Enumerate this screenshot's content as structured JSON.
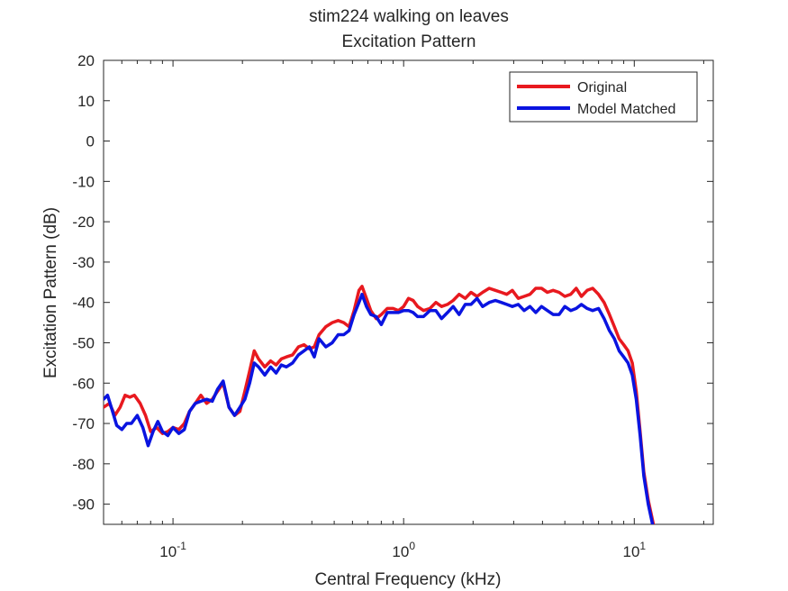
{
  "chart_data": {
    "type": "line",
    "title": "stim224 walking on leaves",
    "subtitle": "Excitation Pattern",
    "xlabel": "Central Frequency (kHz)",
    "ylabel": "Excitation Pattern (dB)",
    "xscale": "log",
    "xlim": [
      0.05,
      22
    ],
    "ylim": [
      -95,
      20
    ],
    "x_ticks": [
      {
        "value": 0.1,
        "base": "10",
        "exp": "-1"
      },
      {
        "value": 1,
        "base": "10",
        "exp": "0"
      },
      {
        "value": 10,
        "base": "10",
        "exp": "1"
      }
    ],
    "y_ticks": [
      20,
      10,
      0,
      -10,
      -20,
      -30,
      -40,
      -50,
      -60,
      -70,
      -80,
      -90
    ],
    "grid": false,
    "legend_position": "top-right",
    "series": [
      {
        "name": "Original",
        "color": "#e8191f",
        "points": [
          [
            0.05,
            -66
          ],
          [
            0.053,
            -65
          ],
          [
            0.056,
            -68
          ],
          [
            0.059,
            -66
          ],
          [
            0.062,
            -63
          ],
          [
            0.065,
            -63.5
          ],
          [
            0.068,
            -63
          ],
          [
            0.072,
            -65
          ],
          [
            0.076,
            -68
          ],
          [
            0.08,
            -72
          ],
          [
            0.085,
            -71
          ],
          [
            0.09,
            -72.5
          ],
          [
            0.095,
            -72
          ],
          [
            0.1,
            -71
          ],
          [
            0.106,
            -71.5
          ],
          [
            0.112,
            -70
          ],
          [
            0.118,
            -67
          ],
          [
            0.125,
            -65
          ],
          [
            0.132,
            -63
          ],
          [
            0.14,
            -65
          ],
          [
            0.148,
            -64
          ],
          [
            0.156,
            -62
          ],
          [
            0.165,
            -60
          ],
          [
            0.175,
            -66
          ],
          [
            0.185,
            -68
          ],
          [
            0.195,
            -67
          ],
          [
            0.205,
            -62
          ],
          [
            0.215,
            -57
          ],
          [
            0.225,
            -52
          ],
          [
            0.235,
            -54
          ],
          [
            0.25,
            -56
          ],
          [
            0.265,
            -54.5
          ],
          [
            0.28,
            -55.5
          ],
          [
            0.295,
            -54
          ],
          [
            0.31,
            -53.5
          ],
          [
            0.33,
            -53
          ],
          [
            0.35,
            -51
          ],
          [
            0.37,
            -50.5
          ],
          [
            0.39,
            -51.5
          ],
          [
            0.41,
            -51
          ],
          [
            0.43,
            -48
          ],
          [
            0.46,
            -46
          ],
          [
            0.49,
            -45
          ],
          [
            0.52,
            -44.5
          ],
          [
            0.55,
            -45
          ],
          [
            0.58,
            -46
          ],
          [
            0.61,
            -42
          ],
          [
            0.64,
            -37
          ],
          [
            0.66,
            -36
          ],
          [
            0.69,
            -39
          ],
          [
            0.72,
            -42
          ],
          [
            0.76,
            -44
          ],
          [
            0.8,
            -43
          ],
          [
            0.85,
            -41.5
          ],
          [
            0.9,
            -41.5
          ],
          [
            0.95,
            -42
          ],
          [
            1.0,
            -41
          ],
          [
            1.05,
            -39
          ],
          [
            1.1,
            -39.5
          ],
          [
            1.15,
            -41
          ],
          [
            1.22,
            -42
          ],
          [
            1.3,
            -41.5
          ],
          [
            1.38,
            -40
          ],
          [
            1.46,
            -41
          ],
          [
            1.55,
            -40.5
          ],
          [
            1.64,
            -39.5
          ],
          [
            1.74,
            -38
          ],
          [
            1.85,
            -39
          ],
          [
            1.96,
            -37.5
          ],
          [
            2.08,
            -38.5
          ],
          [
            2.2,
            -37.5
          ],
          [
            2.35,
            -36.5
          ],
          [
            2.5,
            -37
          ],
          [
            2.65,
            -37.5
          ],
          [
            2.8,
            -38
          ],
          [
            2.96,
            -37
          ],
          [
            3.14,
            -39
          ],
          [
            3.33,
            -38.5
          ],
          [
            3.53,
            -38
          ],
          [
            3.74,
            -36.5
          ],
          [
            3.96,
            -36.5
          ],
          [
            4.2,
            -37.5
          ],
          [
            4.45,
            -37
          ],
          [
            4.72,
            -37.5
          ],
          [
            5.0,
            -38.5
          ],
          [
            5.3,
            -38
          ],
          [
            5.6,
            -36.5
          ],
          [
            5.9,
            -38.5
          ],
          [
            6.25,
            -37
          ],
          [
            6.6,
            -36.5
          ],
          [
            7.0,
            -38
          ],
          [
            7.4,
            -40
          ],
          [
            7.8,
            -43
          ],
          [
            8.2,
            -46
          ],
          [
            8.6,
            -49
          ],
          [
            9.0,
            -50.5
          ],
          [
            9.4,
            -52
          ],
          [
            9.8,
            -55
          ],
          [
            10.2,
            -62
          ],
          [
            10.6,
            -72
          ],
          [
            11.0,
            -82
          ],
          [
            11.5,
            -89
          ],
          [
            12.0,
            -94
          ],
          [
            12.3,
            -97
          ]
        ]
      },
      {
        "name": "Model Matched",
        "color": "#0a14e0",
        "points": [
          [
            0.05,
            -64
          ],
          [
            0.052,
            -63
          ],
          [
            0.054,
            -66
          ],
          [
            0.057,
            -70.5
          ],
          [
            0.06,
            -71.5
          ],
          [
            0.063,
            -70
          ],
          [
            0.066,
            -70
          ],
          [
            0.07,
            -68
          ],
          [
            0.074,
            -71
          ],
          [
            0.078,
            -75.5
          ],
          [
            0.082,
            -72
          ],
          [
            0.086,
            -69.5
          ],
          [
            0.09,
            -72
          ],
          [
            0.095,
            -73
          ],
          [
            0.1,
            -71
          ],
          [
            0.106,
            -72.5
          ],
          [
            0.112,
            -71.5
          ],
          [
            0.118,
            -67
          ],
          [
            0.125,
            -65
          ],
          [
            0.132,
            -64.5
          ],
          [
            0.14,
            -64
          ],
          [
            0.148,
            -64.5
          ],
          [
            0.156,
            -61.5
          ],
          [
            0.165,
            -59.5
          ],
          [
            0.175,
            -66
          ],
          [
            0.185,
            -68
          ],
          [
            0.195,
            -66
          ],
          [
            0.205,
            -64
          ],
          [
            0.215,
            -60
          ],
          [
            0.225,
            -55
          ],
          [
            0.235,
            -56
          ],
          [
            0.25,
            -58
          ],
          [
            0.265,
            -56
          ],
          [
            0.28,
            -57.5
          ],
          [
            0.295,
            -55.5
          ],
          [
            0.31,
            -56
          ],
          [
            0.33,
            -55
          ],
          [
            0.35,
            -53
          ],
          [
            0.37,
            -52
          ],
          [
            0.39,
            -51
          ],
          [
            0.41,
            -53.5
          ],
          [
            0.43,
            -49
          ],
          [
            0.46,
            -51
          ],
          [
            0.49,
            -50
          ],
          [
            0.52,
            -48
          ],
          [
            0.55,
            -48
          ],
          [
            0.58,
            -47
          ],
          [
            0.61,
            -43
          ],
          [
            0.64,
            -40
          ],
          [
            0.66,
            -38
          ],
          [
            0.69,
            -41
          ],
          [
            0.72,
            -43
          ],
          [
            0.76,
            -43.5
          ],
          [
            0.8,
            -45.5
          ],
          [
            0.85,
            -42.5
          ],
          [
            0.9,
            -42.5
          ],
          [
            0.95,
            -42.5
          ],
          [
            1.0,
            -42
          ],
          [
            1.05,
            -42
          ],
          [
            1.1,
            -42.5
          ],
          [
            1.15,
            -43.5
          ],
          [
            1.22,
            -43.5
          ],
          [
            1.3,
            -42
          ],
          [
            1.38,
            -42
          ],
          [
            1.46,
            -44
          ],
          [
            1.55,
            -42.5
          ],
          [
            1.64,
            -41
          ],
          [
            1.74,
            -43
          ],
          [
            1.85,
            -40.5
          ],
          [
            1.96,
            -40.5
          ],
          [
            2.08,
            -39
          ],
          [
            2.2,
            -41
          ],
          [
            2.35,
            -40
          ],
          [
            2.5,
            -39.5
          ],
          [
            2.65,
            -40
          ],
          [
            2.8,
            -40.5
          ],
          [
            2.96,
            -41
          ],
          [
            3.14,
            -40.5
          ],
          [
            3.33,
            -42
          ],
          [
            3.53,
            -41
          ],
          [
            3.74,
            -42.5
          ],
          [
            3.96,
            -41
          ],
          [
            4.2,
            -42
          ],
          [
            4.45,
            -43
          ],
          [
            4.72,
            -43
          ],
          [
            5.0,
            -41
          ],
          [
            5.3,
            -42
          ],
          [
            5.6,
            -41.5
          ],
          [
            5.9,
            -40.5
          ],
          [
            6.25,
            -41.5
          ],
          [
            6.6,
            -42
          ],
          [
            7.0,
            -41.5
          ],
          [
            7.4,
            -44
          ],
          [
            7.8,
            -47
          ],
          [
            8.2,
            -49
          ],
          [
            8.6,
            -52
          ],
          [
            9.0,
            -53.5
          ],
          [
            9.4,
            -55
          ],
          [
            9.8,
            -58
          ],
          [
            10.2,
            -64
          ],
          [
            10.6,
            -73
          ],
          [
            11.0,
            -83
          ],
          [
            11.5,
            -90
          ],
          [
            12.0,
            -95
          ],
          [
            12.3,
            -97
          ]
        ]
      }
    ]
  }
}
